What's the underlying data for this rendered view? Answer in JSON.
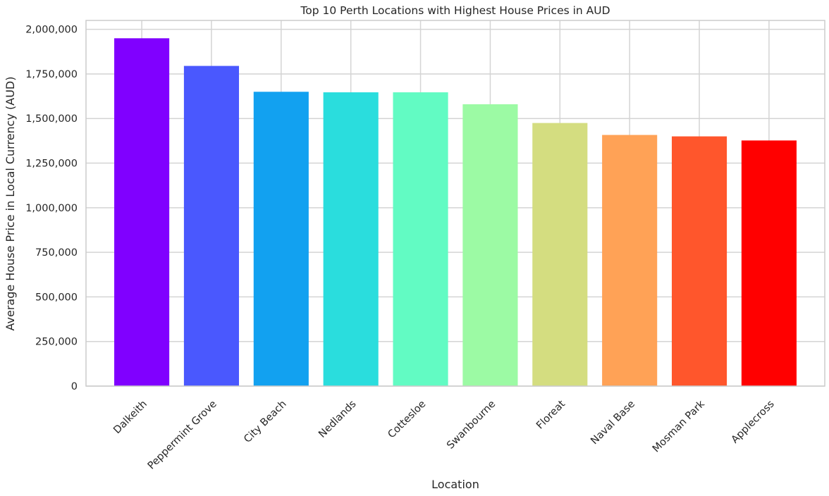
{
  "chart_data": {
    "type": "bar",
    "title": "Top 10 Perth Locations with Highest House Prices in AUD",
    "xlabel": "Location",
    "ylabel": "Average House Price in Local Currency (AUD)",
    "categories": [
      "Dalkeith",
      "Peppermint Grove",
      "City Beach",
      "Nedlands",
      "Cottesloe",
      "Swanbourne",
      "Floreat",
      "Naval Base",
      "Mosman Park",
      "Applecross"
    ],
    "values": [
      1950000,
      1795000,
      1650000,
      1647000,
      1647000,
      1580000,
      1475000,
      1408000,
      1400000,
      1377000
    ],
    "colors": [
      "#8000ff",
      "#4a58fe",
      "#12a1f0",
      "#2adddd",
      "#62fbc3",
      "#9cfaa4",
      "#d4dd80",
      "#ffa256",
      "#ff562c",
      "#ff0000"
    ],
    "ylim": [
      0,
      2050000
    ],
    "yticks": [
      0,
      250000,
      500000,
      750000,
      1000000,
      1250000,
      1500000,
      1750000,
      2000000
    ],
    "ytick_labels": [
      "0",
      "250,000",
      "500,000",
      "750,000",
      "1,000,000",
      "1,250,000",
      "1,500,000",
      "1,750,000",
      "2,000,000"
    ],
    "grid": true,
    "xtick_rotation": 45
  }
}
